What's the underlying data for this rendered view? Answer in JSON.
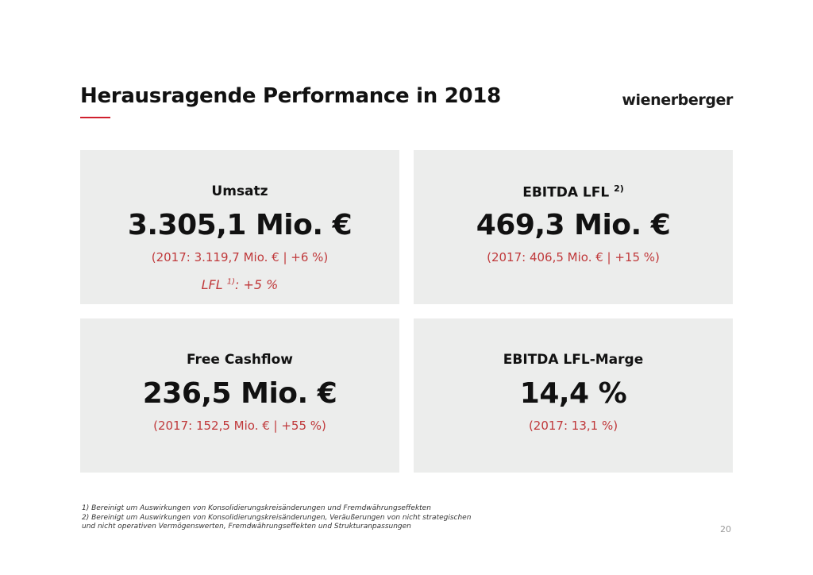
{
  "header": {
    "title": "Herausragende Performance in 2018",
    "logo": "wienerberger"
  },
  "cards": [
    {
      "label": "Umsatz",
      "sup": "",
      "value": "3.305,1 Mio. €",
      "comparison": "(2017: 3.119,7 Mio. € | +6 %)",
      "lfl_prefix": "LFL ",
      "lfl_sup": "1)",
      "lfl_suffix": ": +5 %"
    },
    {
      "label": "EBITDA LFL ",
      "sup": "2)",
      "value": "469,3 Mio. €",
      "comparison": "(2017: 406,5 Mio. € | +15 %)"
    },
    {
      "label": "Free Cashflow",
      "sup": "",
      "value": "236,5 Mio. €",
      "comparison": "(2017: 152,5 Mio. € | +55 %)"
    },
    {
      "label": "EBITDA LFL-Marge",
      "sup": "",
      "value": "14,4 %",
      "comparison": "(2017: 13,1 %)"
    }
  ],
  "footnotes": [
    "1) Bereinigt um Auswirkungen von Konsolidierungskreisänderungen und Fremdwährungseffekten",
    "2) Bereinigt um Auswirkungen von Konsolidierungskreisänderungen, Veräußerungen von nicht strategischen",
    "und nicht operativen Vermögenswerten, Fremdwährungseffekten und Strukturanpassungen"
  ],
  "page_number": "20",
  "colors": {
    "accent": "#d0202e",
    "card_bg": "#ecedec",
    "comparison_text": "#c0393b"
  }
}
